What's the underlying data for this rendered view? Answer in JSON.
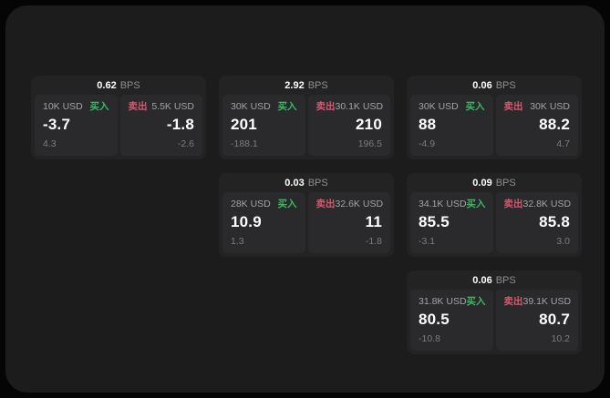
{
  "colors": {
    "panel_bg": "#1c1c1d",
    "card_bg": "#232324",
    "subpanel_bg": "#2a2a2c",
    "buy_green": "#3cb860",
    "sell_red": "#d4586f",
    "dim_text": "#8e8e93",
    "dim_text2": "#7c7c81",
    "label_text": "#a3a3a8"
  },
  "bps_label": "BPS",
  "cards": [
    {
      "col": 1,
      "row": 1,
      "bps": "0.62",
      "buy": {
        "amount": "10K USD",
        "tag": "买入",
        "value": "-3.7",
        "delta": "4.3"
      },
      "sell": {
        "tag": "卖出",
        "amount": "5.5K USD",
        "value": "-1.8",
        "delta": "-2.6"
      }
    },
    {
      "col": 2,
      "row": 1,
      "bps": "2.92",
      "buy": {
        "amount": "30K USD",
        "tag": "买入",
        "value": "201",
        "delta": "-188.1"
      },
      "sell": {
        "tag": "卖出",
        "amount": "30.1K USD",
        "value": "210",
        "delta": "196.5"
      }
    },
    {
      "col": 3,
      "row": 1,
      "bps": "0.06",
      "buy": {
        "amount": "30K USD",
        "tag": "买入",
        "value": "88",
        "delta": "-4.9"
      },
      "sell": {
        "tag": "卖出",
        "amount": "30K USD",
        "value": "88.2",
        "delta": "4.7"
      }
    },
    {
      "col": 2,
      "row": 2,
      "bps": "0.03",
      "buy": {
        "amount": "28K USD",
        "tag": "买入",
        "value": "10.9",
        "delta": "1.3"
      },
      "sell": {
        "tag": "卖出",
        "amount": "32.6K USD",
        "value": "11",
        "delta": "-1.8"
      }
    },
    {
      "col": 3,
      "row": 2,
      "bps": "0.09",
      "buy": {
        "amount": "34.1K USD",
        "tag": "买入",
        "value": "85.5",
        "delta": "-3.1"
      },
      "sell": {
        "tag": "卖出",
        "amount": "32.8K USD",
        "value": "85.8",
        "delta": "3.0"
      }
    },
    {
      "col": 3,
      "row": 3,
      "bps": "0.06",
      "buy": {
        "amount": "31.8K USD",
        "tag": "买入",
        "value": "80.5",
        "delta": "-10.8"
      },
      "sell": {
        "tag": "卖出",
        "amount": "39.1K USD",
        "value": "80.7",
        "delta": "10.2"
      }
    }
  ]
}
